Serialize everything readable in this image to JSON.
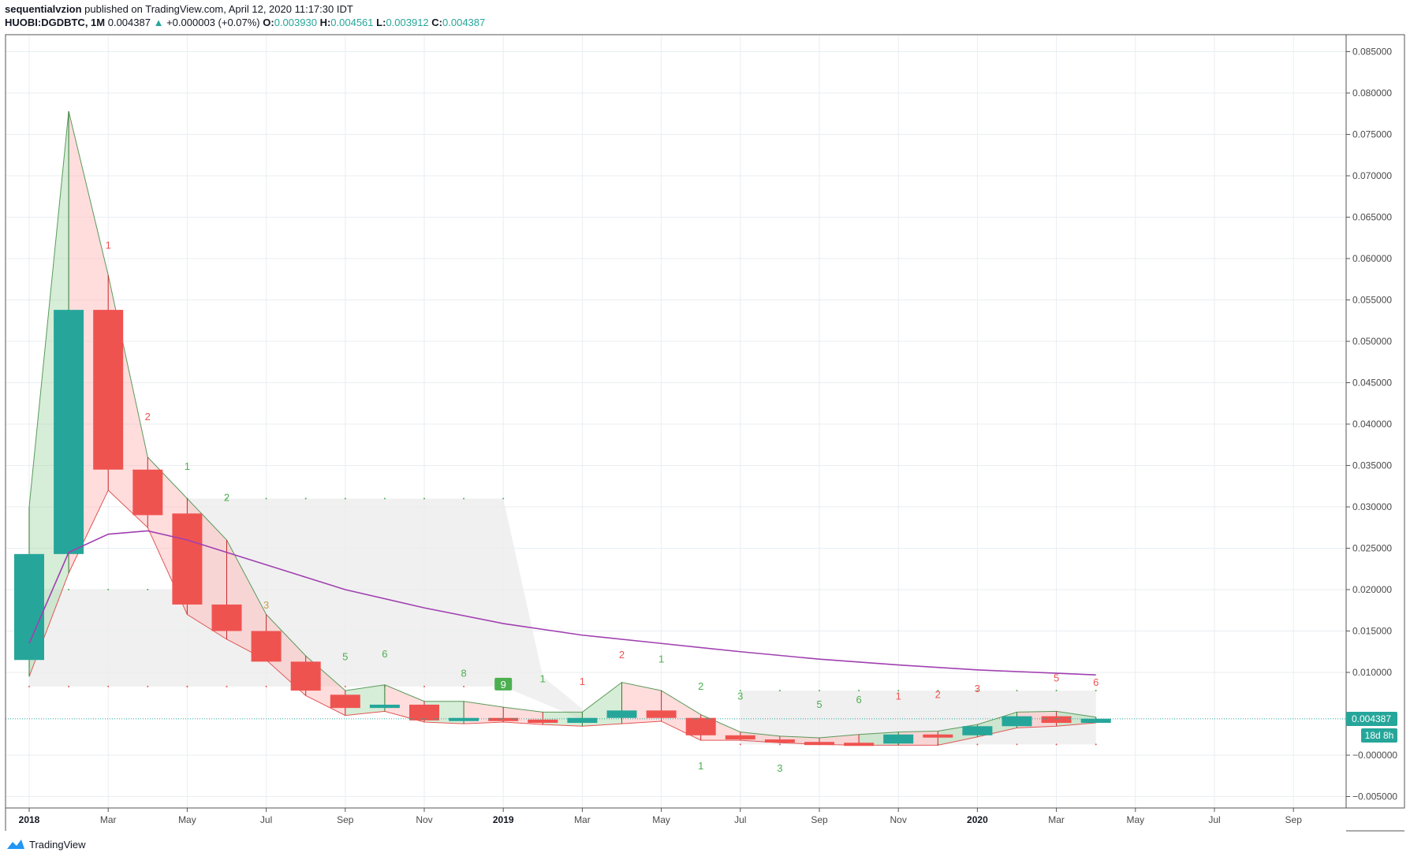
{
  "header": {
    "author": "sequentialvzion",
    "published": "published on TradingView.com, April 12, 2020 11:17:30 IDT",
    "symbol": "HUOBI:DGDBTC, 1M",
    "last": "0.004387",
    "change": "+0.000003 (+0.07%)",
    "o_label": "O:",
    "o_value": "0.003930",
    "h_label": "H:",
    "h_value": "0.004561",
    "l_label": "L:",
    "l_value": "0.003912",
    "c_label": "C:",
    "c_value": "0.004387"
  },
  "footer": {
    "brand": "TradingView"
  },
  "colors": {
    "up": "#26a69a",
    "down": "#ef5350",
    "ma": "#a040b0",
    "bull_fill": "#a5d6a7",
    "bear_fill": "#ffb3b3",
    "range_fill": "#ececec",
    "seq_green": "#4caf50",
    "seq_red": "#ef5350",
    "price_tag": "#26a69a"
  },
  "price_tag": {
    "value": "0.004387",
    "countdown": "18d 8h"
  },
  "chart_data": {
    "type": "candlestick",
    "title": "HUOBI:DGDBTC, 1M",
    "ylim": [
      -0.0065,
      0.0885
    ],
    "y_ticks": [
      {
        "value": 0.085,
        "label": "0.085000"
      },
      {
        "value": 0.08,
        "label": "0.080000"
      },
      {
        "value": 0.075,
        "label": "0.075000"
      },
      {
        "value": 0.07,
        "label": "0.070000"
      },
      {
        "value": 0.065,
        "label": "0.065000"
      },
      {
        "value": 0.06,
        "label": "0.060000"
      },
      {
        "value": 0.055,
        "label": "0.055000"
      },
      {
        "value": 0.05,
        "label": "0.050000"
      },
      {
        "value": 0.045,
        "label": "0.045000"
      },
      {
        "value": 0.04,
        "label": "0.040000"
      },
      {
        "value": 0.035,
        "label": "0.035000"
      },
      {
        "value": 0.03,
        "label": "0.030000"
      },
      {
        "value": 0.025,
        "label": "0.025000"
      },
      {
        "value": 0.02,
        "label": "0.020000"
      },
      {
        "value": 0.015,
        "label": "0.015000"
      },
      {
        "value": 0.01,
        "label": "0.010000"
      },
      {
        "value": 0.0,
        "label": "−0.000000"
      },
      {
        "value": -0.005,
        "label": "−0.005000"
      }
    ],
    "x_ticks": [
      {
        "index": 0,
        "label": "2018",
        "bold": true
      },
      {
        "index": 2,
        "label": "Mar"
      },
      {
        "index": 4,
        "label": "May"
      },
      {
        "index": 6,
        "label": "Jul"
      },
      {
        "index": 8,
        "label": "Sep"
      },
      {
        "index": 10,
        "label": "Nov"
      },
      {
        "index": 12,
        "label": "2019",
        "bold": true
      },
      {
        "index": 14,
        "label": "Mar"
      },
      {
        "index": 16,
        "label": "May"
      },
      {
        "index": 18,
        "label": "Jul"
      },
      {
        "index": 20,
        "label": "Sep"
      },
      {
        "index": 22,
        "label": "Nov"
      },
      {
        "index": 24,
        "label": "2020",
        "bold": true
      },
      {
        "index": 26,
        "label": "Mar"
      },
      {
        "index": 28,
        "label": "May"
      },
      {
        "index": 30,
        "label": "Jul"
      },
      {
        "index": 32,
        "label": "Sep"
      }
    ],
    "candles": [
      {
        "month": "2018-01",
        "o": 0.0115,
        "h": 0.03,
        "l": 0.0095,
        "c": 0.0243
      },
      {
        "month": "2018-02",
        "o": 0.0243,
        "h": 0.0778,
        "l": 0.022,
        "c": 0.0538
      },
      {
        "month": "2018-03",
        "o": 0.0538,
        "h": 0.058,
        "l": 0.032,
        "c": 0.0345
      },
      {
        "month": "2018-04",
        "o": 0.0345,
        "h": 0.036,
        "l": 0.0275,
        "c": 0.029
      },
      {
        "month": "2018-05",
        "o": 0.0292,
        "h": 0.031,
        "l": 0.017,
        "c": 0.0182
      },
      {
        "month": "2018-06",
        "o": 0.0182,
        "h": 0.026,
        "l": 0.014,
        "c": 0.015
      },
      {
        "month": "2018-07",
        "o": 0.015,
        "h": 0.017,
        "l": 0.0115,
        "c": 0.0113
      },
      {
        "month": "2018-08",
        "o": 0.0113,
        "h": 0.012,
        "l": 0.0072,
        "c": 0.0078
      },
      {
        "month": "2018-09",
        "o": 0.0073,
        "h": 0.0078,
        "l": 0.0048,
        "c": 0.0057
      },
      {
        "month": "2018-10",
        "o": 0.0057,
        "h": 0.0085,
        "l": 0.0053,
        "c": 0.0061
      },
      {
        "month": "2018-11",
        "o": 0.0061,
        "h": 0.0065,
        "l": 0.004,
        "c": 0.0042
      },
      {
        "month": "2018-12",
        "o": 0.0042,
        "h": 0.0065,
        "l": 0.0038,
        "c": 0.0045
      },
      {
        "month": "2019-01",
        "o": 0.0045,
        "h": 0.0058,
        "l": 0.004,
        "c": 0.0043
      },
      {
        "month": "2019-02",
        "o": 0.0043,
        "h": 0.0052,
        "l": 0.0037,
        "c": 0.0039
      },
      {
        "month": "2019-03",
        "o": 0.0039,
        "h": 0.0052,
        "l": 0.0035,
        "c": 0.0045
      },
      {
        "month": "2019-04",
        "o": 0.0045,
        "h": 0.0088,
        "l": 0.0038,
        "c": 0.0054
      },
      {
        "month": "2019-05",
        "o": 0.0054,
        "h": 0.0078,
        "l": 0.0041,
        "c": 0.0045
      },
      {
        "month": "2019-06",
        "o": 0.0045,
        "h": 0.0049,
        "l": 0.0018,
        "c": 0.0024
      },
      {
        "month": "2019-07",
        "o": 0.0024,
        "h": 0.0028,
        "l": 0.0018,
        "c": 0.0019
      },
      {
        "month": "2019-08",
        "o": 0.0019,
        "h": 0.0023,
        "l": 0.0015,
        "c": 0.0016
      },
      {
        "month": "2019-09",
        "o": 0.0016,
        "h": 0.0021,
        "l": 0.0013,
        "c": 0.0015
      },
      {
        "month": "2019-10",
        "o": 0.0015,
        "h": 0.0025,
        "l": 0.0012,
        "c": 0.0014
      },
      {
        "month": "2019-11",
        "o": 0.0014,
        "h": 0.0028,
        "l": 0.0012,
        "c": 0.0025
      },
      {
        "month": "2019-12",
        "o": 0.0025,
        "h": 0.0029,
        "l": 0.0012,
        "c": 0.0024
      },
      {
        "month": "2020-01",
        "o": 0.0024,
        "h": 0.0037,
        "l": 0.0022,
        "c": 0.0035
      },
      {
        "month": "2020-02",
        "o": 0.0035,
        "h": 0.0052,
        "l": 0.0033,
        "c": 0.0047
      },
      {
        "month": "2020-03",
        "o": 0.0047,
        "h": 0.0053,
        "l": 0.0035,
        "c": 0.0039
      },
      {
        "month": "2020-04",
        "o": 0.0039,
        "h": 0.0046,
        "l": 0.0039,
        "c": 0.0044
      }
    ],
    "ma": [
      {
        "i": 0,
        "v": 0.0135
      },
      {
        "i": 1,
        "v": 0.0245
      },
      {
        "i": 2,
        "v": 0.0267
      },
      {
        "i": 3,
        "v": 0.0271
      },
      {
        "i": 4,
        "v": 0.026
      },
      {
        "i": 5,
        "v": 0.0245
      },
      {
        "i": 6,
        "v": 0.023
      },
      {
        "i": 7,
        "v": 0.0215
      },
      {
        "i": 8,
        "v": 0.02
      },
      {
        "i": 10,
        "v": 0.0178
      },
      {
        "i": 12,
        "v": 0.0159
      },
      {
        "i": 14,
        "v": 0.0145
      },
      {
        "i": 16,
        "v": 0.0135
      },
      {
        "i": 18,
        "v": 0.0125
      },
      {
        "i": 20,
        "v": 0.0116
      },
      {
        "i": 22,
        "v": 0.0109
      },
      {
        "i": 24,
        "v": 0.0103
      },
      {
        "i": 26,
        "v": 0.0099
      },
      {
        "i": 27,
        "v": 0.0097
      }
    ],
    "range_boxes": [
      {
        "x0": 0,
        "x1": 4,
        "top": 0.02,
        "bottom": 0.0083
      },
      {
        "x0": 4,
        "x1": 12,
        "top": 0.031,
        "bottom": 0.0083
      },
      {
        "x0": 12,
        "x1": 14,
        "top": 0.0083,
        "bottom": 0.0083,
        "tail_top": 0.0056
      },
      {
        "x0": 18,
        "x1": 27,
        "top": 0.0078,
        "bottom": 0.0013
      }
    ],
    "sequential_counts": [
      {
        "i": 2,
        "text": "1",
        "side": "red",
        "y": 0.0612
      },
      {
        "i": 3,
        "text": "2",
        "side": "red",
        "y": 0.0405
      },
      {
        "i": 4,
        "text": "1",
        "side": "green",
        "y": 0.0345
      },
      {
        "i": 5,
        "text": "2",
        "side": "green",
        "y": 0.0307
      },
      {
        "i": 6,
        "text": "3",
        "side": "orange",
        "y": 0.0177
      },
      {
        "i": 8,
        "text": "5",
        "side": "green",
        "y": 0.0115
      },
      {
        "i": 9,
        "text": "6",
        "side": "green",
        "y": 0.0118
      },
      {
        "i": 11,
        "text": "8",
        "side": "green",
        "y": 0.0095
      },
      {
        "i": 12,
        "text": "9",
        "side": "badge",
        "y": 0.0082
      },
      {
        "i": 13,
        "text": "1",
        "side": "green",
        "y": 0.0088
      },
      {
        "i": 14,
        "text": "1",
        "side": "red",
        "y": 0.0085
      },
      {
        "i": 15,
        "text": "2",
        "side": "red",
        "y": 0.0117
      },
      {
        "i": 16,
        "text": "1",
        "side": "green",
        "y": 0.0112
      },
      {
        "i": 17,
        "text": "2",
        "side": "green",
        "y": 0.0079
      },
      {
        "i": 18,
        "text": "3",
        "side": "green",
        "y": 0.0067
      },
      {
        "i": 20,
        "text": "5",
        "side": "green",
        "y": 0.0057
      },
      {
        "i": 21,
        "text": "6",
        "side": "green",
        "y": 0.0063
      },
      {
        "i": 22,
        "text": "1",
        "side": "red",
        "y": 0.0067
      },
      {
        "i": 23,
        "text": "2",
        "side": "red",
        "y": 0.0069
      },
      {
        "i": 24,
        "text": "3",
        "side": "red",
        "y": 0.0076
      },
      {
        "i": 26,
        "text": "5",
        "side": "red",
        "y": 0.0089
      },
      {
        "i": 27,
        "text": "6",
        "side": "red",
        "y": 0.0084
      },
      {
        "i": 17,
        "text": "1",
        "side": "green",
        "y": -0.0017
      },
      {
        "i": 19,
        "text": "3",
        "side": "green",
        "y": -0.002
      }
    ]
  }
}
